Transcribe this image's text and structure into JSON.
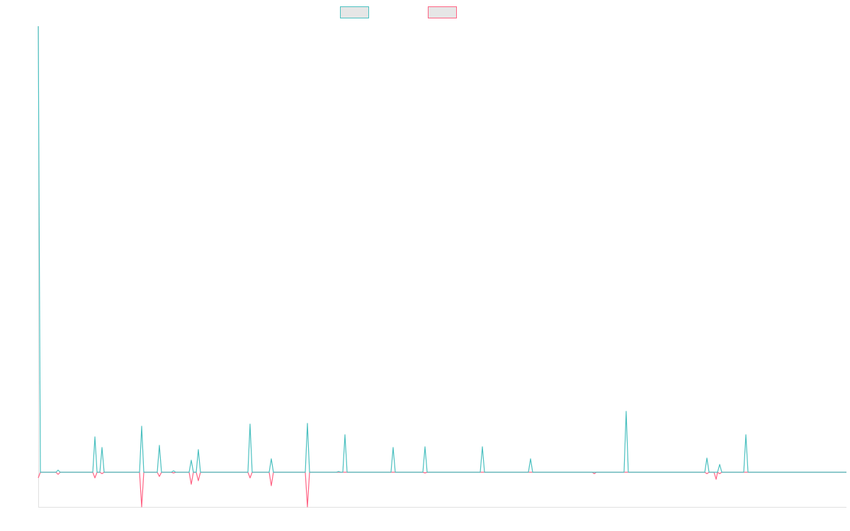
{
  "chart_data": {
    "type": "line",
    "x": [
      0,
      3,
      25,
      28,
      31,
      77,
      80,
      83,
      87,
      90,
      93,
      143,
      146,
      149,
      168,
      171,
      174,
      188,
      191,
      194,
      213,
      216,
      219,
      223,
      226,
      229,
      296,
      299,
      302,
      326,
      329,
      332,
      377,
      380,
      383,
      421,
      424,
      427,
      430,
      433,
      436,
      498,
      501,
      504,
      543,
      546,
      549,
      624,
      627,
      630,
      692,
      695,
      698,
      782,
      785,
      788,
      827,
      830,
      833,
      941,
      944,
      947,
      954,
      957,
      959,
      962,
      965,
      996,
      999,
      1002,
      1141
    ],
    "series": [
      {
        "color": "#4bc0c0",
        "values": [
          630,
          0,
          0,
          3,
          0,
          0,
          50,
          0,
          0,
          35,
          0,
          0,
          65,
          0,
          0,
          38,
          0,
          0,
          2,
          0,
          0,
          17,
          0,
          0,
          32,
          0,
          0,
          68,
          0,
          0,
          19,
          0,
          0,
          69,
          0,
          0,
          1,
          0,
          0,
          53,
          0,
          0,
          35,
          0,
          0,
          36,
          0,
          0,
          36,
          0,
          0,
          19,
          0,
          0,
          0,
          0,
          0,
          86,
          0,
          0,
          20,
          0,
          0,
          0,
          0,
          11,
          0,
          0,
          53,
          0,
          0
        ]
      },
      {
        "color": "#ff6384",
        "values": [
          -8,
          0,
          0,
          -3,
          0,
          0,
          -8,
          0,
          0,
          -2,
          0,
          0,
          -49,
          0,
          0,
          -6,
          0,
          0,
          -1,
          0,
          0,
          -17,
          0,
          0,
          -12,
          0,
          0,
          -8,
          0,
          0,
          -19,
          0,
          0,
          -49,
          0,
          0,
          0,
          0,
          0,
          0,
          0,
          0,
          0,
          0,
          0,
          -1,
          0,
          0,
          0,
          0,
          0,
          0,
          0,
          0,
          -2,
          0,
          0,
          0,
          0,
          0,
          -2,
          0,
          0,
          -10,
          0,
          -2,
          0,
          0,
          0,
          0,
          0
        ]
      }
    ],
    "xlim": [
      0,
      1141
    ],
    "ylim": [
      -49,
      630
    ]
  }
}
